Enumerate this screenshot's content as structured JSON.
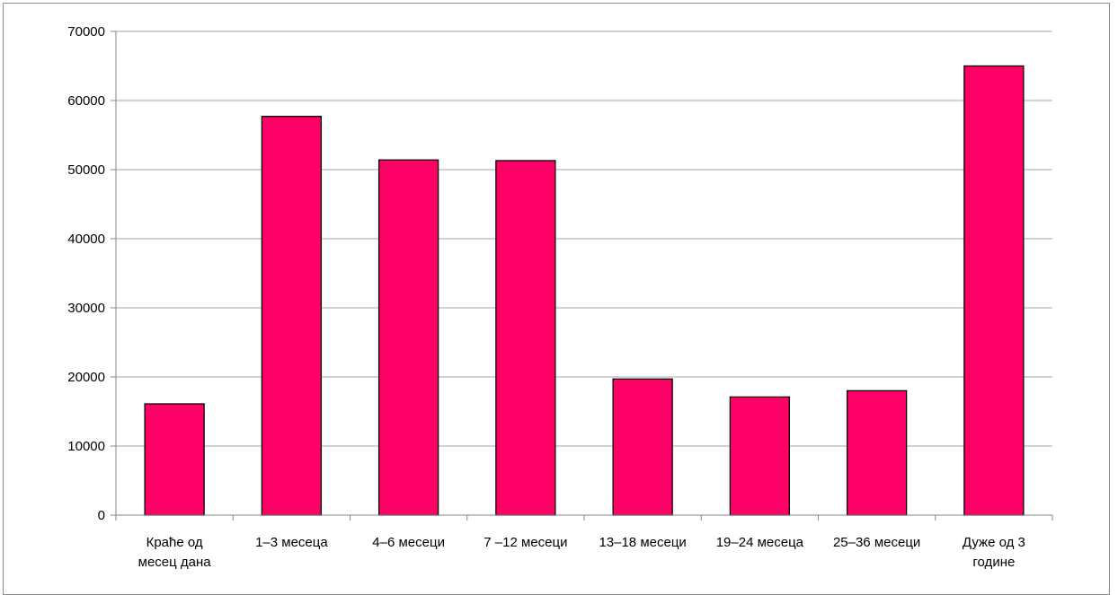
{
  "chart_data": {
    "type": "bar",
    "title": "",
    "xlabel": "",
    "ylabel": "",
    "categories": [
      [
        "Краће од",
        "месец дана"
      ],
      [
        "1–3  месеца"
      ],
      [
        "4–6 месеци"
      ],
      [
        "7 –12 месеци"
      ],
      [
        "13–18 месеци"
      ],
      [
        "19–24 месеца"
      ],
      [
        "25–36 месеци"
      ],
      [
        "Дуже од 3",
        "године"
      ]
    ],
    "values": [
      16100,
      57700,
      51400,
      51300,
      19700,
      17100,
      18000,
      65000
    ],
    "ylim": [
      0,
      70000
    ],
    "yticks": [
      0,
      10000,
      20000,
      30000,
      40000,
      50000,
      60000,
      70000
    ],
    "grid": true,
    "legend": "none",
    "colors": {
      "bar_fill": "#ff0066",
      "bar_stroke": "#000000",
      "grid": "#a6a6a6",
      "axis": "#868686"
    }
  }
}
